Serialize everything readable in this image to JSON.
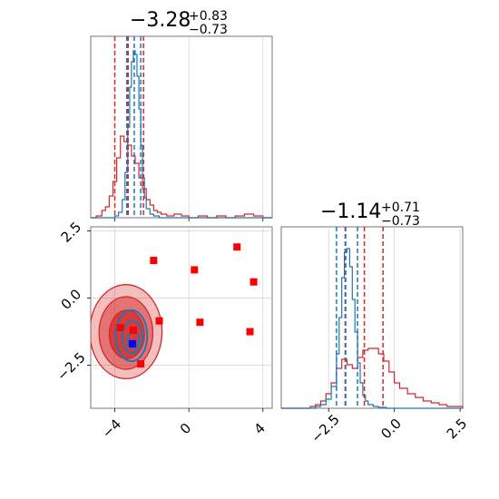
{
  "colors": {
    "red": "#d62728",
    "blue": "#1f77b4",
    "marker_red": "#ff0000",
    "marker_blue": "#0000ff"
  },
  "chart_data": [
    {
      "panel": "top-left",
      "type": "line",
      "title": {
        "main": "−3.28",
        "sup": "+0.83",
        "sub": "−0.73"
      },
      "xlim": [
        -5.3,
        4.5
      ],
      "x_ticks": [
        -4,
        0,
        4
      ],
      "show_tick_labels": false,
      "grid": true,
      "quantile_lines": {
        "red": [
          -4.0,
          -3.28,
          -2.45
        ],
        "blue": [
          -3.35,
          -2.95,
          -2.6
        ]
      },
      "series": [
        {
          "color": "red",
          "style": "step",
          "x": [
            -5.3,
            -5.0,
            -4.7,
            -4.5,
            -4.3,
            -4.1,
            -3.9,
            -3.7,
            -3.5,
            -3.3,
            -3.1,
            -2.9,
            -2.7,
            -2.5,
            -2.3,
            -2.1,
            -1.9,
            -1.7,
            -1.5,
            -1.2,
            -0.8,
            -0.4,
            0,
            0.5,
            1.0,
            1.5,
            2.0,
            2.5,
            3.0,
            3.5,
            4.0,
            4.5
          ],
          "y": [
            0.0,
            0.01,
            0.04,
            0.06,
            0.12,
            0.2,
            0.33,
            0.45,
            0.42,
            0.4,
            0.34,
            0.3,
            0.22,
            0.16,
            0.1,
            0.07,
            0.04,
            0.03,
            0.02,
            0.01,
            0.02,
            0.01,
            0.0,
            0.01,
            0.0,
            0.01,
            0.0,
            0.01,
            0.02,
            0.01,
            0.0,
            0.0
          ]
        },
        {
          "color": "blue",
          "style": "step",
          "x": [
            -5.3,
            -4.3,
            -4.0,
            -3.8,
            -3.6,
            -3.45,
            -3.3,
            -3.2,
            -3.1,
            -3.0,
            -2.9,
            -2.8,
            -2.7,
            -2.6,
            -2.5,
            -2.4,
            -2.3,
            -2.1,
            -1.9,
            -1.6,
            4.5
          ],
          "y": [
            0.0,
            0.0,
            0.01,
            0.03,
            0.1,
            0.25,
            0.5,
            0.72,
            0.86,
            0.92,
            0.9,
            0.78,
            0.6,
            0.4,
            0.22,
            0.11,
            0.05,
            0.02,
            0.01,
            0.0,
            0.0
          ]
        }
      ]
    },
    {
      "panel": "bottom-left",
      "type": "scatter",
      "xlim": [
        -5.3,
        4.5
      ],
      "ylim": [
        -4.1,
        2.65
      ],
      "x_ticks": [
        -4,
        0,
        4
      ],
      "x_tick_labels": [
        "−4",
        "0",
        "4"
      ],
      "y_ticks": [
        2.5,
        0.0,
        -2.5
      ],
      "y_tick_labels": [
        "2.5",
        "0.0",
        "−2.5"
      ],
      "grid": true,
      "contours_red": [
        {
          "cx": -3.4,
          "cy": -1.25,
          "rx": 1.95,
          "ry": 1.75,
          "opacity": 0.3
        },
        {
          "cx": -3.4,
          "cy": -1.3,
          "rx": 1.45,
          "ry": 1.35,
          "opacity": 0.5
        },
        {
          "cx": -3.35,
          "cy": -1.35,
          "rx": 0.95,
          "ry": 0.9,
          "opacity": 0.75
        }
      ],
      "contours_blue": [
        {
          "cx": -3.1,
          "cy": -1.4,
          "rx": 0.85,
          "ry": 0.95
        },
        {
          "cx": -3.05,
          "cy": -1.45,
          "rx": 0.55,
          "ry": 0.6
        },
        {
          "cx": -3.0,
          "cy": -1.55,
          "rx": 0.3,
          "ry": 0.32
        }
      ],
      "red_points": [
        [
          -1.9,
          1.4
        ],
        [
          0.3,
          1.05
        ],
        [
          2.6,
          1.9
        ],
        [
          3.5,
          0.6
        ],
        [
          -1.6,
          -0.85
        ],
        [
          0.6,
          -0.9
        ],
        [
          3.3,
          -1.25
        ],
        [
          -3.7,
          -1.1
        ],
        [
          -2.6,
          -2.45
        ],
        [
          -3.0,
          -1.2
        ]
      ],
      "blue_points": [
        [
          -3.05,
          -1.7
        ]
      ]
    },
    {
      "panel": "bottom-right",
      "type": "line",
      "title": {
        "main": "−1.14",
        "sup": "+0.71",
        "sub": "−0.73"
      },
      "xlim": [
        -4.3,
        2.6
      ],
      "x_ticks": [
        -2.5,
        0.0,
        2.5
      ],
      "x_tick_labels": [
        "−2.5",
        "0.0",
        "2.5"
      ],
      "grid": true,
      "quantile_lines": {
        "red": [
          -1.87,
          -1.14,
          -0.43
        ],
        "blue": [
          -2.2,
          -1.85,
          -1.4
        ]
      },
      "series": [
        {
          "color": "red",
          "style": "step",
          "x": [
            -4.3,
            -3.5,
            -3.2,
            -3.0,
            -2.8,
            -2.6,
            -2.4,
            -2.2,
            -2.0,
            -1.8,
            -1.6,
            -1.4,
            -1.2,
            -1.0,
            -0.8,
            -0.6,
            -0.4,
            -0.2,
            0.0,
            0.2,
            0.5,
            0.8,
            1.1,
            1.4,
            1.7,
            2.0,
            2.3,
            2.6
          ],
          "y": [
            0.0,
            0.0,
            0.01,
            0.02,
            0.04,
            0.08,
            0.14,
            0.22,
            0.27,
            0.24,
            0.22,
            0.28,
            0.32,
            0.33,
            0.33,
            0.3,
            0.26,
            0.2,
            0.14,
            0.11,
            0.08,
            0.06,
            0.04,
            0.03,
            0.02,
            0.01,
            0.01,
            0.0
          ]
        },
        {
          "color": "blue",
          "style": "step",
          "x": [
            -4.3,
            -3.0,
            -2.8,
            -2.6,
            -2.4,
            -2.2,
            -2.1,
            -2.0,
            -1.9,
            -1.8,
            -1.7,
            -1.6,
            -1.5,
            -1.4,
            -1.3,
            -1.2,
            -1.1,
            -1.0,
            -0.8,
            -0.6,
            -0.3,
            2.6
          ],
          "y": [
            0.0,
            0.01,
            0.02,
            0.05,
            0.12,
            0.3,
            0.5,
            0.72,
            0.86,
            0.88,
            0.78,
            0.6,
            0.42,
            0.25,
            0.14,
            0.07,
            0.04,
            0.02,
            0.01,
            0.005,
            0.0,
            0.0
          ]
        }
      ]
    }
  ]
}
